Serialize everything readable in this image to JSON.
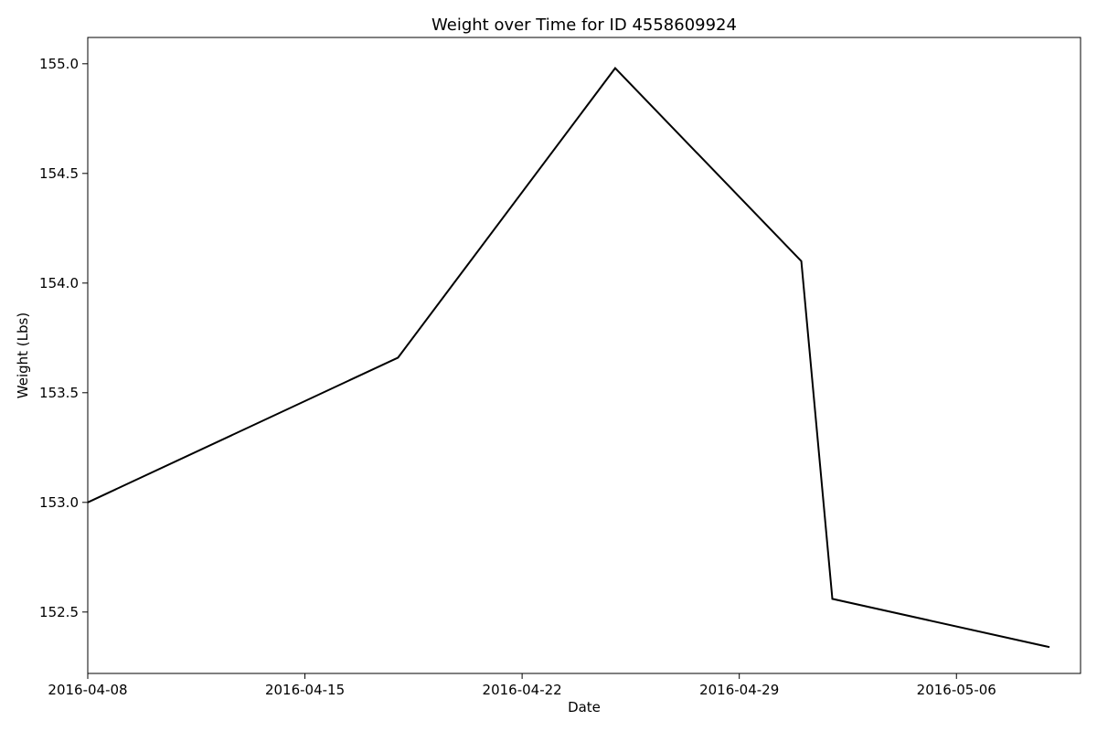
{
  "chart_data": {
    "type": "line",
    "title": "Weight over Time for ID 4558609924",
    "xlabel": "Date",
    "ylabel": "Weight (Lbs)",
    "x_axis_type": "date",
    "xlim": [
      "2016-04-08",
      "2016-05-10"
    ],
    "ylim": [
      152.22,
      155.12
    ],
    "x_ticks": [
      "2016-04-08",
      "2016-04-15",
      "2016-04-22",
      "2016-04-29",
      "2016-05-06"
    ],
    "y_ticks": [
      "152.5",
      "153.0",
      "153.5",
      "154.0",
      "154.5",
      "155.0"
    ],
    "grid": false,
    "legend": "none",
    "series": [
      {
        "color": "#000000",
        "points": [
          {
            "x": "2016-04-08",
            "y": 153.0
          },
          {
            "x": "2016-04-18",
            "y": 153.66
          },
          {
            "x": "2016-04-25",
            "y": 154.98
          },
          {
            "x": "2016-05-01",
            "y": 154.1
          },
          {
            "x": "2016-05-02",
            "y": 152.56
          },
          {
            "x": "2016-05-09",
            "y": 152.34
          }
        ]
      }
    ]
  }
}
